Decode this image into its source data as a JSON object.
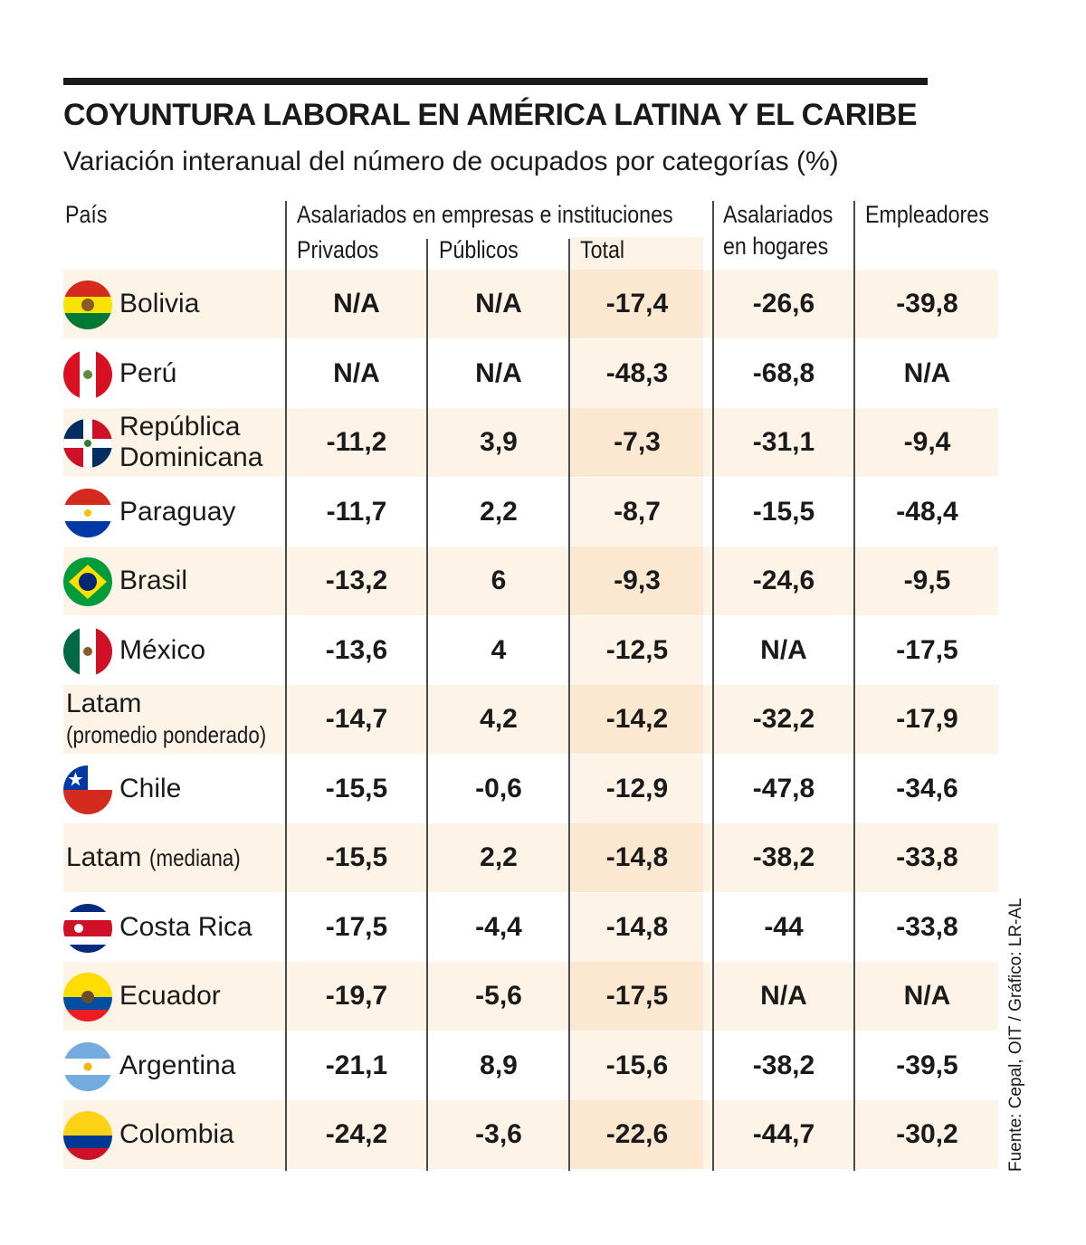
{
  "title": "COYUNTURA LABORAL EN AMÉRICA LATINA Y EL CARIBE",
  "subtitle": "Variación interanual del número de ocupados por categorías (%)",
  "headers": {
    "pais": "País",
    "group": "Asalariados en empresas e instituciones",
    "privados": "Privados",
    "publicos": "Públicos",
    "total": "Total",
    "hogares_1": "Asalariados",
    "hogares_2": "en hogares",
    "empleadores": "Empleadores"
  },
  "source": "Fuente: Cepal, OIT / Gráfico: LR-AL",
  "chart_data": {
    "type": "table",
    "title": "COYUNTURA LABORAL EN AMÉRICA LATINA Y EL CARIBE",
    "subtitle": "Variación interanual del número de ocupados por categorías (%)",
    "columns": [
      "Privados",
      "Públicos",
      "Total",
      "Asalariados en hogares",
      "Empleadores"
    ],
    "rows": [
      {
        "country": "Bolivia",
        "line1": "Bolivia",
        "line2": "",
        "flag": "bolivia",
        "values": [
          "N/A",
          "N/A",
          "-17,4",
          "-26,6",
          "-39,8"
        ]
      },
      {
        "country": "Perú",
        "line1": "Perú",
        "line2": "",
        "flag": "peru",
        "values": [
          "N/A",
          "N/A",
          "-48,3",
          "-68,8",
          "N/A"
        ]
      },
      {
        "country": "República Dominicana",
        "line1": "República",
        "line2": "Dominicana",
        "flag": "dominicana",
        "values": [
          "-11,2",
          "3,9",
          "-7,3",
          "-31,1",
          "-9,4"
        ]
      },
      {
        "country": "Paraguay",
        "line1": "Paraguay",
        "line2": "",
        "flag": "paraguay",
        "values": [
          "-11,7",
          "2,2",
          "-8,7",
          "-15,5",
          "-48,4"
        ]
      },
      {
        "country": "Brasil",
        "line1": "Brasil",
        "line2": "",
        "flag": "brasil",
        "values": [
          "-13,2",
          "6",
          "-9,3",
          "-24,6",
          "-9,5"
        ]
      },
      {
        "country": "México",
        "line1": "México",
        "line2": "",
        "flag": "mexico",
        "values": [
          "-13,6",
          "4",
          "-12,5",
          "N/A",
          "-17,5"
        ]
      },
      {
        "country": "Latam (promedio ponderado)",
        "line1": "Latam",
        "line2": "(promedio ponderado)",
        "flag": "",
        "values": [
          "-14,7",
          "4,2",
          "-14,2",
          "-32,2",
          "-17,9"
        ]
      },
      {
        "country": "Chile",
        "line1": "Chile",
        "line2": "",
        "flag": "chile",
        "values": [
          "-15,5",
          "-0,6",
          "-12,9",
          "-47,8",
          "-34,6"
        ]
      },
      {
        "country": "Latam (mediana)",
        "line1": "Latam",
        "line2": "(mediana)",
        "flag": "",
        "values": [
          "-15,5",
          "2,2",
          "-14,8",
          "-38,2",
          "-33,8"
        ]
      },
      {
        "country": "Costa Rica",
        "line1": "Costa Rica",
        "line2": "",
        "flag": "costarica",
        "values": [
          "-17,5",
          "-4,4",
          "-14,8",
          "-44",
          "-33,8"
        ]
      },
      {
        "country": "Ecuador",
        "line1": "Ecuador",
        "line2": "",
        "flag": "ecuador",
        "values": [
          "-19,7",
          "-5,6",
          "-17,5",
          "N/A",
          "N/A"
        ]
      },
      {
        "country": "Argentina",
        "line1": "Argentina",
        "line2": "",
        "flag": "argentina",
        "values": [
          "-21,1",
          "8,9",
          "-15,6",
          "-38,2",
          "-39,5"
        ]
      },
      {
        "country": "Colombia",
        "line1": "Colombia",
        "line2": "",
        "flag": "colombia",
        "values": [
          "-24,2",
          "-3,6",
          "-22,6",
          "-44,7",
          "-30,2"
        ]
      }
    ]
  }
}
